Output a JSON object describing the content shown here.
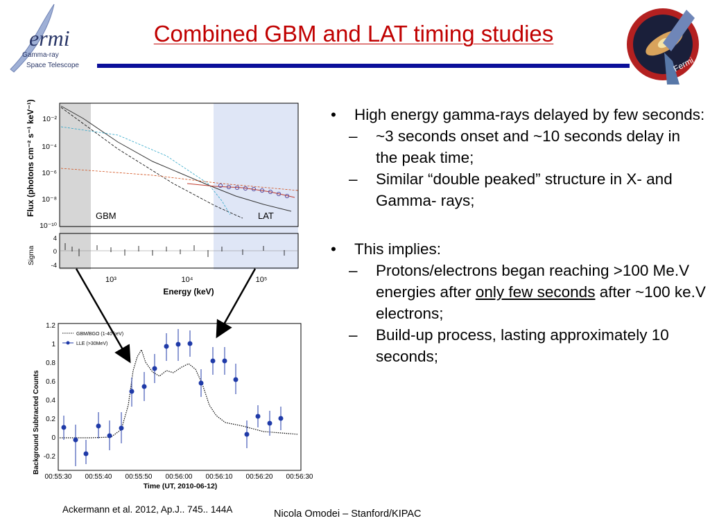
{
  "header": {
    "title": "Combined GBM and LAT timing studies",
    "logo": {
      "brand": "ermi",
      "line1": "Gamma-ray",
      "line2": "Space Telescope"
    },
    "badge": {
      "text": "Fermi"
    },
    "bar_color": "#0b0f9a"
  },
  "figures": {
    "spectrum": {
      "ylabel": "Flux (photons cm⁻² s⁻¹ keV⁻¹)",
      "y_ticks": [
        "10⁻²",
        "10⁻⁴",
        "10⁻⁶",
        "10⁻⁸",
        "10⁻¹⁰"
      ],
      "residual_label": "Sigma",
      "residual_ticks": [
        "4",
        "0",
        "-4"
      ],
      "x_ticks": [
        "10³",
        "10⁴",
        "10⁵"
      ],
      "xlabel": "Energy (keV)",
      "gbm_label": "GBM",
      "lat_label": "LAT"
    },
    "lightcurve": {
      "ylabel": "Background Subtracted Counts",
      "xlabel": "Time (UT, 2010-06-12)",
      "legend": [
        "GBM/BGO (1-40 keV)",
        "LLE (>30MeV)"
      ],
      "y_ticks": [
        "1.2",
        "1",
        "0.8",
        "0.6",
        "0.4",
        "0.2",
        "0",
        "-0.2"
      ],
      "x_ticks": [
        "00:55:30",
        "00:55:40",
        "00:55:50",
        "00:56:00",
        "00:56:10",
        "00:56:20",
        "00:56:30"
      ]
    }
  },
  "bullets": [
    {
      "text": "High energy gamma-rays delayed by few seconds:",
      "sub": [
        "~3 seconds onset and ~10 seconds delay in the peak time;",
        "Similar “double peaked” structure in X- and Gamma- rays;"
      ]
    },
    {
      "text": "This implies:",
      "sub": [
        {
          "a": "Protons/electrons began reaching >100 Me.V energies after ",
          "u": "only few seconds",
          "b": " after ~100 ke.V electrons;"
        },
        "Build-up process, lasting approximately 10 seconds;"
      ]
    }
  ],
  "bullet_symbol": "•",
  "dash_symbol": "–",
  "citation": "Ackermann et al. 2012, Ap.J.. 745.. 144A",
  "footer": "Nicola Omodei – Stanford/KIPAC"
}
